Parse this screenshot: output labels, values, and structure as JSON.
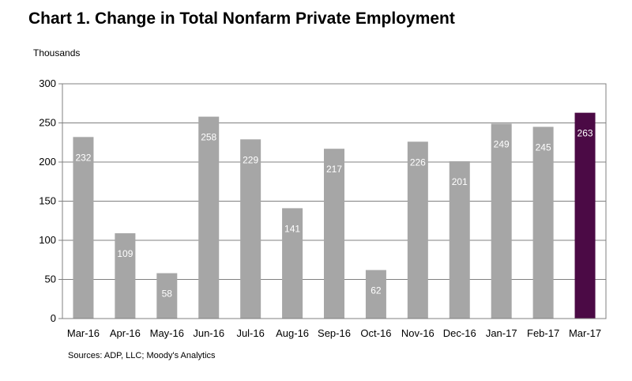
{
  "chart_data": {
    "type": "bar",
    "title": "Chart 1. Change in Total Nonfarm Private Employment",
    "ylabel": "Thousands",
    "xlabel": "",
    "source": "Sources: ADP, LLC; Moody's Analytics",
    "categories": [
      "Mar-16",
      "Apr-16",
      "May-16",
      "Jun-16",
      "Jul-16",
      "Aug-16",
      "Sep-16",
      "Oct-16",
      "Nov-16",
      "Dec-16",
      "Jan-17",
      "Feb-17",
      "Mar-17"
    ],
    "values": [
      232,
      109,
      58,
      258,
      229,
      141,
      217,
      62,
      226,
      201,
      249,
      245,
      263
    ],
    "ylim": [
      0,
      300
    ],
    "yticks": [
      0,
      50,
      100,
      150,
      200,
      250,
      300
    ],
    "grid": true,
    "legend": "none",
    "colors": {
      "default": "#a6a6a6",
      "highlight": "#4b0a45",
      "grid": "#808080"
    },
    "highlight_index": 12
  }
}
